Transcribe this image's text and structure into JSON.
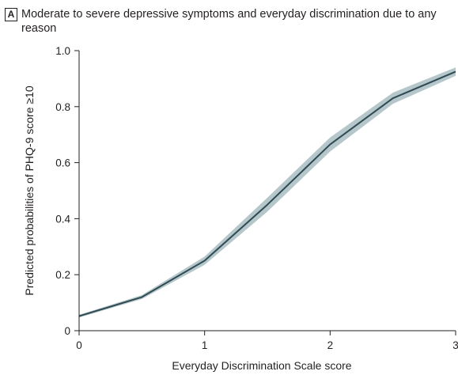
{
  "panel": {
    "letter": "A"
  },
  "chart_data": {
    "type": "line",
    "title": "Moderate to severe depressive symptoms and everyday discrimination due to any reason",
    "xlabel": "Everyday Discrimination Scale score",
    "ylabel": "Predicted probabilities of PHQ-9 score ≥10",
    "xlim": [
      0,
      3
    ],
    "ylim": [
      0,
      1.0
    ],
    "x_ticks": [
      "0",
      "1",
      "2",
      "3"
    ],
    "y_ticks": [
      "0",
      "0.2",
      "0.4",
      "0.6",
      "0.8",
      "1.0"
    ],
    "x_tick_values": [
      0,
      1,
      2,
      3
    ],
    "y_tick_values": [
      0,
      0.2,
      0.4,
      0.6,
      0.8,
      1.0
    ],
    "grid": false,
    "series": [
      {
        "x": [
          0,
          0.5,
          1,
          1.5,
          2,
          2.5,
          3
        ],
        "values": [
          0.052,
          0.12,
          0.25,
          0.45,
          0.665,
          0.83,
          0.925
        ],
        "ci_lower": [
          0.047,
          0.113,
          0.235,
          0.425,
          0.64,
          0.81,
          0.91
        ],
        "ci_upper": [
          0.057,
          0.127,
          0.265,
          0.475,
          0.69,
          0.85,
          0.94
        ]
      }
    ],
    "colors": {
      "line": "#2f4a52",
      "band": "#b5c7cb",
      "axis": "#231f20"
    }
  }
}
